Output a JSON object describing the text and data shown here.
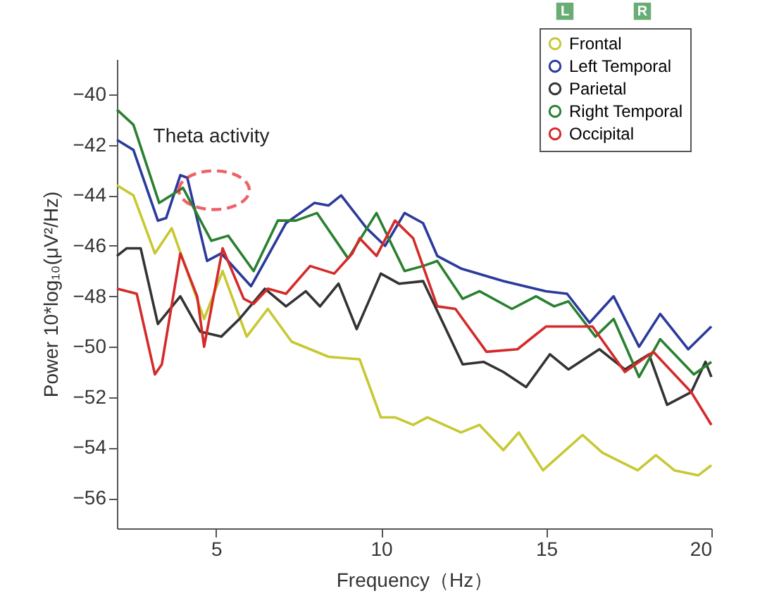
{
  "chart_data": {
    "type": "line",
    "xlabel": "Frequency（Hz）",
    "ylabel": "Power 10*log₁₀(μV²/Hz)",
    "xlim": [
      2,
      20
    ],
    "xticks": [
      5,
      10,
      15,
      20
    ],
    "ylim": [
      -57.2,
      -38.6
    ],
    "yticks": [
      -56,
      -54,
      -52,
      -50,
      -48,
      -46,
      -44,
      -42,
      -40
    ],
    "grid": false,
    "legend": "top right",
    "marker": "none",
    "line_style": "solid",
    "annotations": [
      "Theta activity",
      "L",
      "R"
    ],
    "series": [
      {
        "name": "Frontal",
        "color": "#c8c832",
        "x": [
          2.0,
          2.5,
          3.15,
          3.66,
          4.64,
          5.2,
          5.93,
          6.57,
          7.29,
          8.41,
          9.35,
          9.99,
          10.42,
          10.97,
          11.4,
          12.42,
          12.98,
          13.7,
          14.17,
          14.9,
          16.1,
          16.7,
          17.77,
          18.32,
          18.88,
          19.6,
          20.0
        ],
        "values": [
          -43.6,
          -44.0,
          -46.3,
          -45.3,
          -48.9,
          -47.0,
          -49.6,
          -48.5,
          -49.8,
          -50.4,
          -50.5,
          -52.8,
          -52.8,
          -53.1,
          -52.8,
          -53.4,
          -53.1,
          -54.1,
          -53.4,
          -54.9,
          -53.5,
          -54.2,
          -54.9,
          -54.3,
          -54.9,
          -55.1,
          -54.7
        ]
      },
      {
        "name": "Left Temporal",
        "color": "#2b3a9c",
        "x": [
          2.0,
          2.5,
          3.24,
          3.49,
          3.92,
          4.13,
          4.73,
          5.16,
          6.06,
          6.57,
          7.12,
          7.98,
          8.41,
          8.79,
          9.56,
          10.12,
          10.71,
          11.27,
          11.7,
          12.42,
          13.7,
          14.99,
          15.63,
          16.31,
          17.04,
          17.81,
          18.45,
          19.3,
          20.0
        ],
        "values": [
          -41.8,
          -42.2,
          -45.0,
          -44.9,
          -43.2,
          -43.3,
          -46.6,
          -46.3,
          -47.6,
          -46.4,
          -45.1,
          -44.3,
          -44.4,
          -44.0,
          -45.3,
          -46.0,
          -44.7,
          -45.1,
          -46.4,
          -46.9,
          -47.4,
          -47.8,
          -47.9,
          -49.05,
          -48.0,
          -50.0,
          -48.7,
          -50.1,
          -49.2
        ]
      },
      {
        "name": "Parietal",
        "color": "#333333",
        "x": [
          2.0,
          2.29,
          2.72,
          3.24,
          3.92,
          4.52,
          5.16,
          5.71,
          6.48,
          7.12,
          7.72,
          8.15,
          8.71,
          9.26,
          9.99,
          10.54,
          11.27,
          12.47,
          13.1,
          13.7,
          14.39,
          15.11,
          15.67,
          16.61,
          17.38,
          18.11,
          18.66,
          19.39,
          19.82,
          20.0
        ],
        "values": [
          -46.4,
          -46.1,
          -46.1,
          -49.1,
          -48.0,
          -49.4,
          -49.6,
          -48.9,
          -47.7,
          -48.4,
          -47.8,
          -48.4,
          -47.5,
          -49.3,
          -47.1,
          -47.5,
          -47.4,
          -50.7,
          -50.6,
          -51.0,
          -51.6,
          -50.3,
          -50.9,
          -50.1,
          -50.9,
          -50.3,
          -52.3,
          -51.8,
          -50.6,
          -51.2
        ]
      },
      {
        "name": "Right Temporal",
        "color": "#2a8030",
        "x": [
          2.0,
          2.5,
          3.28,
          4.0,
          4.86,
          5.37,
          6.14,
          6.87,
          7.42,
          8.06,
          9.0,
          9.86,
          10.71,
          11.27,
          11.7,
          12.47,
          12.98,
          13.96,
          14.69,
          15.24,
          15.67,
          16.49,
          17.04,
          17.81,
          18.45,
          19.47,
          20.0
        ],
        "values": [
          -40.6,
          -41.2,
          -44.3,
          -43.7,
          -45.8,
          -45.6,
          -47.0,
          -45.0,
          -45.0,
          -44.7,
          -46.5,
          -44.7,
          -47.0,
          -46.8,
          -46.6,
          -48.1,
          -47.8,
          -48.5,
          -48.0,
          -48.4,
          -48.2,
          -49.6,
          -48.9,
          -51.2,
          -49.7,
          -51.1,
          -50.6
        ]
      },
      {
        "name": "Occipital",
        "color": "#d42a2a",
        "x": [
          2.0,
          2.6,
          3.15,
          3.36,
          3.92,
          4.43,
          4.64,
          5.2,
          5.84,
          6.14,
          6.57,
          7.12,
          7.85,
          8.58,
          9.13,
          9.35,
          9.86,
          10.42,
          10.97,
          11.7,
          12.25,
          13.19,
          14.13,
          14.99,
          15.84,
          16.4,
          17.38,
          18.24,
          19.39,
          20.0
        ],
        "values": [
          -47.7,
          -47.9,
          -51.1,
          -50.7,
          -46.3,
          -48.0,
          -50.0,
          -46.1,
          -48.1,
          -48.3,
          -47.7,
          -47.9,
          -46.8,
          -47.1,
          -46.3,
          -45.7,
          -46.4,
          -45.0,
          -45.7,
          -48.4,
          -48.5,
          -50.2,
          -50.1,
          -49.2,
          -49.2,
          -49.2,
          -51.0,
          -50.2,
          -51.8,
          -53.1
        ]
      }
    ]
  }
}
